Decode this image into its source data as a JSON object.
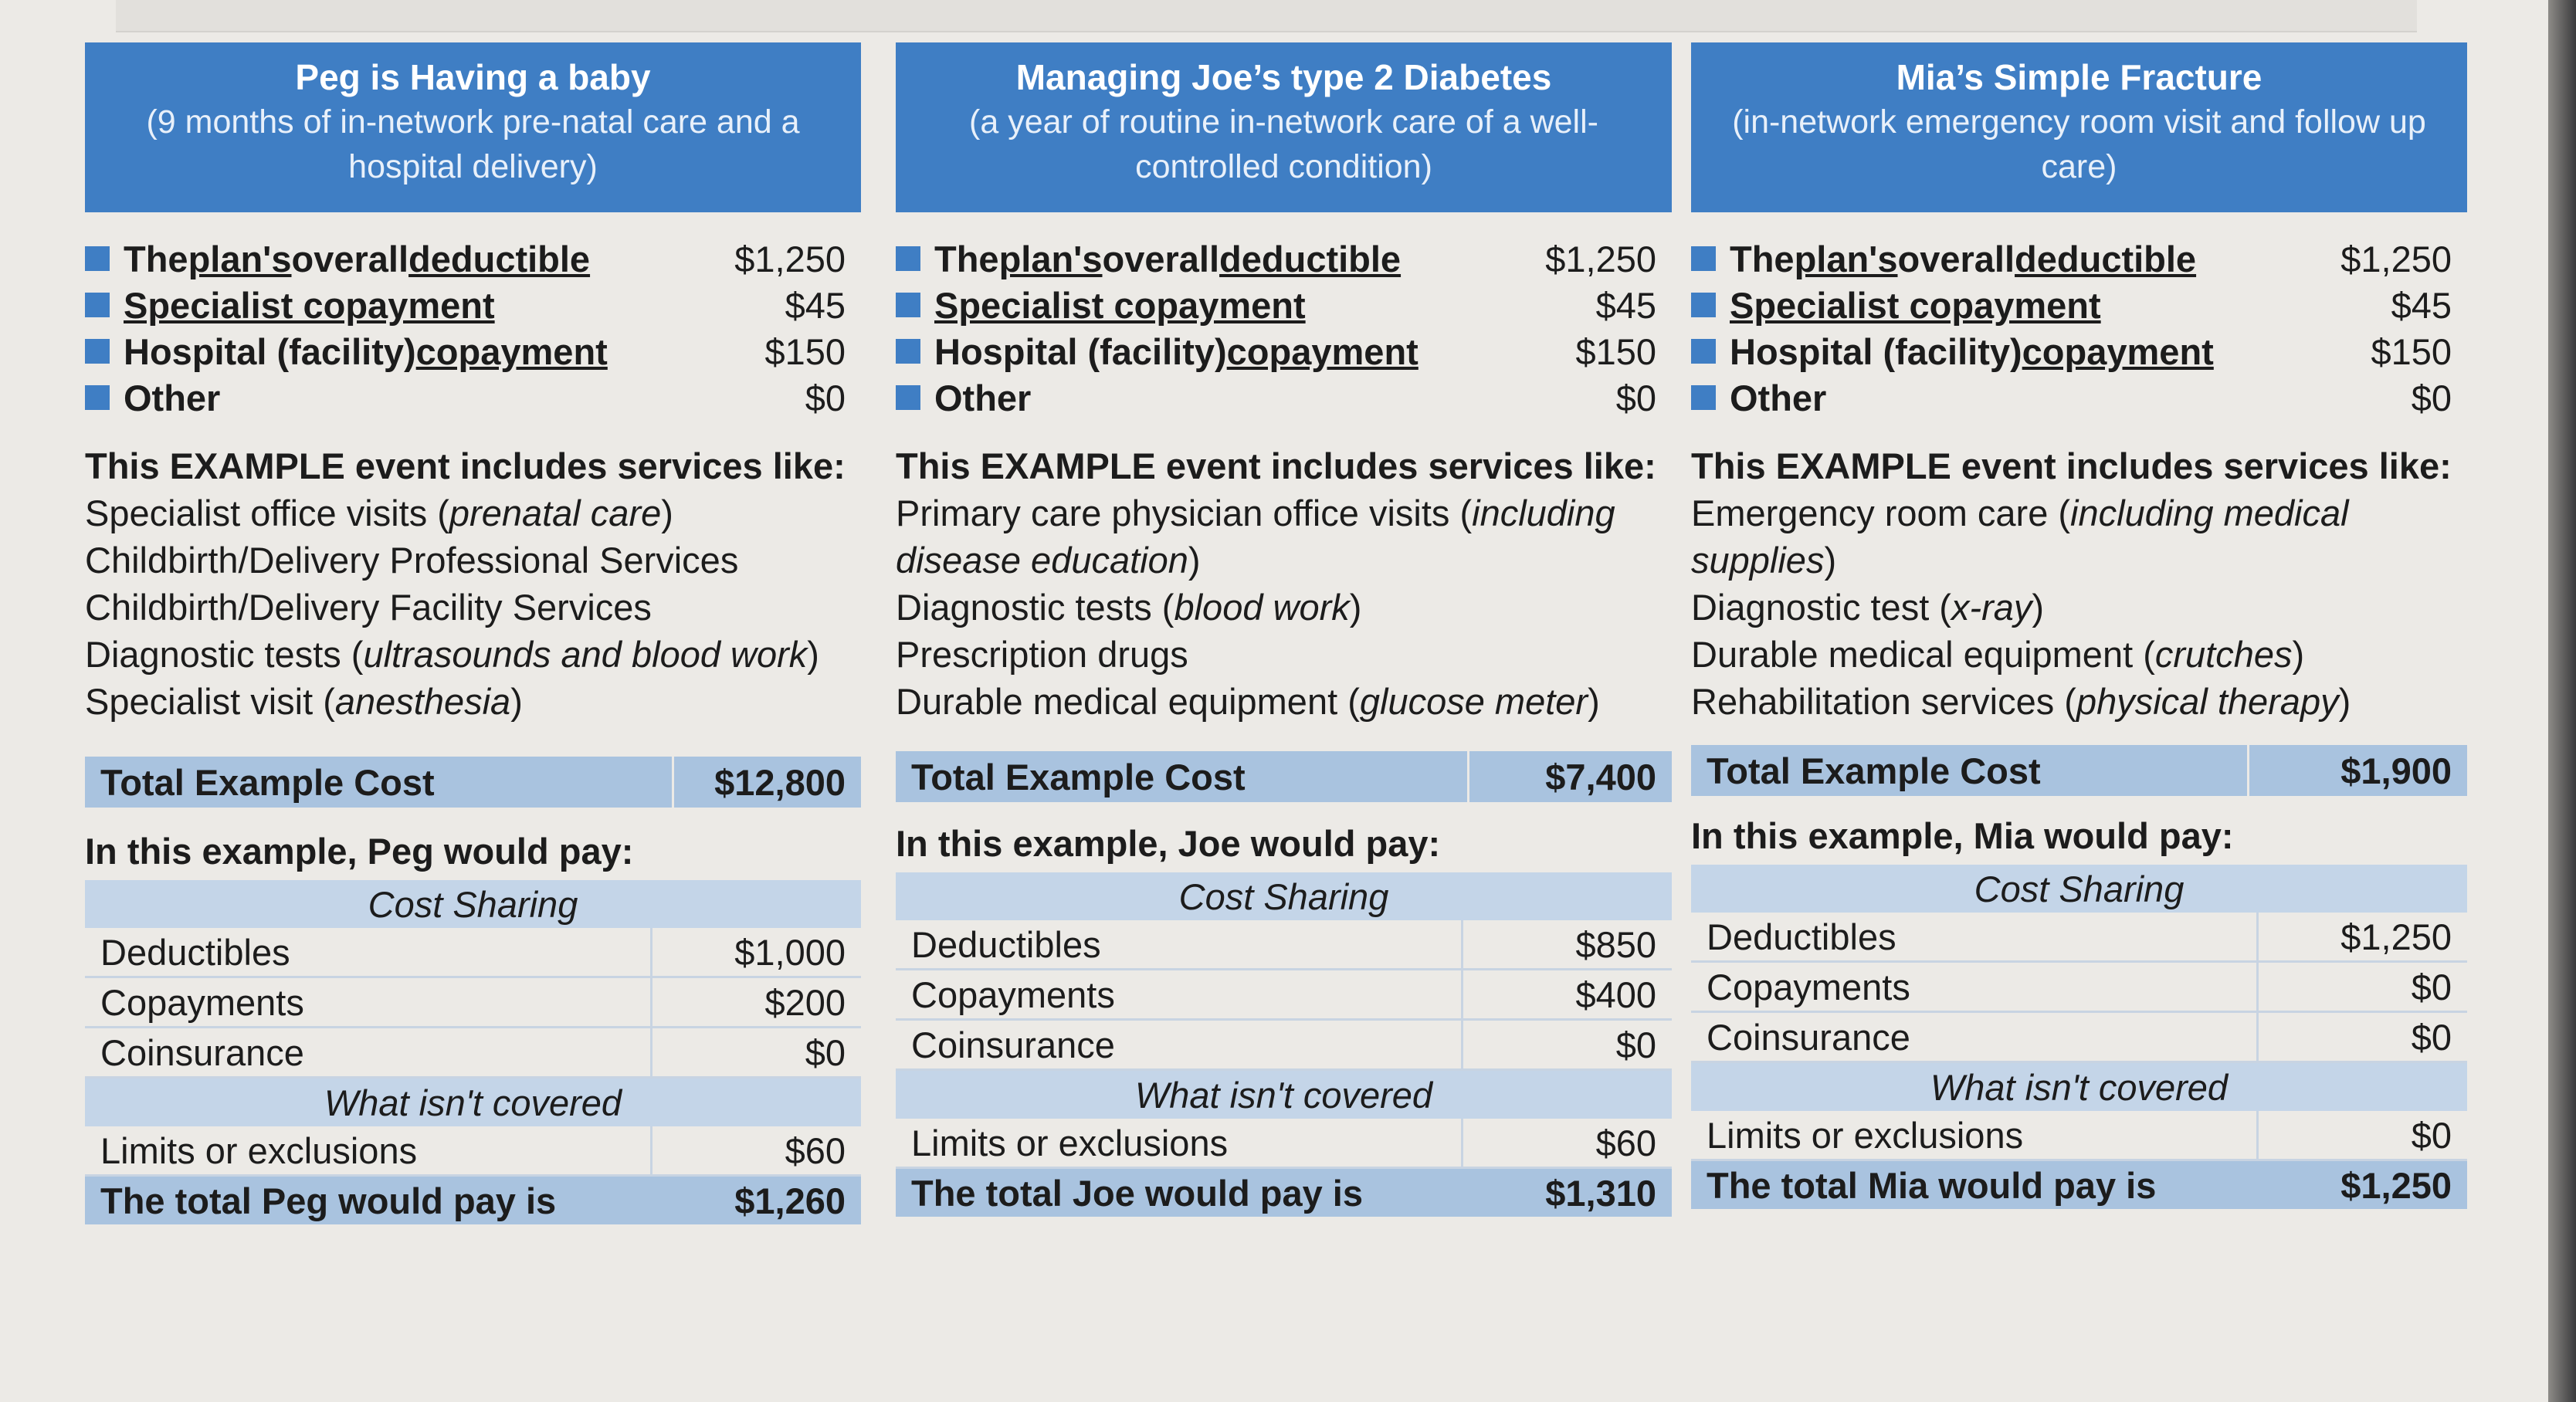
{
  "columns": [
    {
      "title": "Peg is Having a baby",
      "subtitle": "(9 months of in-network pre-natal care and a hospital delivery)",
      "plan": [
        {
          "pre": "The ",
          "u1": "plan's",
          "mid": " overall ",
          "u2": "deductible",
          "amount": "$1,250"
        },
        {
          "pre": "",
          "u1": "Specialist copayment",
          "mid": "",
          "u2": "",
          "amount": "$45"
        },
        {
          "pre": "Hospital (facility) ",
          "u1": "copayment",
          "mid": "",
          "u2": "",
          "amount": "$150"
        },
        {
          "pre": "Other",
          "u1": "",
          "mid": "",
          "u2": "",
          "amount": "$0"
        }
      ],
      "services_heading": "This EXAMPLE event includes services like:",
      "services": [
        {
          "text": "Specialist office visits (",
          "italic": "prenatal care",
          "end": ")"
        },
        {
          "text": "Childbirth/Delivery Professional Services",
          "italic": "",
          "end": ""
        },
        {
          "text": "Childbirth/Delivery Facility Services",
          "italic": "",
          "end": ""
        },
        {
          "text": "Diagnostic tests (",
          "italic": "ultrasounds and blood work",
          "end": ")"
        },
        {
          "text": "Specialist visit (",
          "italic": "anesthesia",
          "end": ")"
        }
      ],
      "total_label": "Total Example Cost",
      "total_value": "$12,800",
      "pay_heading": "In this example, Peg would pay:",
      "cost_sharing_label": "Cost Sharing",
      "deductibles_label": "Deductibles",
      "deductibles": "$1,000",
      "copayments_label": "Copayments",
      "copayments": "$200",
      "coinsurance_label": "Coinsurance",
      "coinsurance": "$0",
      "not_covered_label": "What isn't covered",
      "limits_label": "Limits or exclusions",
      "limits": "$60",
      "final_label": "The total Peg would pay is",
      "final": "$1,260"
    },
    {
      "title": "Managing Joe’s type 2 Diabetes",
      "subtitle": "(a year of routine in-network care of a well-controlled condition)",
      "plan": [
        {
          "pre": "The ",
          "u1": "plan's",
          "mid": " overall ",
          "u2": "deductible",
          "amount": "$1,250"
        },
        {
          "pre": "",
          "u1": "Specialist copayment",
          "mid": "",
          "u2": "",
          "amount": "$45"
        },
        {
          "pre": "Hospital (facility) ",
          "u1": "copayment",
          "mid": "",
          "u2": "",
          "amount": "$150"
        },
        {
          "pre": "Other",
          "u1": "",
          "mid": "",
          "u2": "",
          "amount": "$0"
        }
      ],
      "services_heading": "This EXAMPLE event includes services like:",
      "services": [
        {
          "text": "Primary care physician office visits (",
          "italic": "including disease education",
          "end": ")"
        },
        {
          "text": "Diagnostic tests (",
          "italic": "blood work",
          "end": ")"
        },
        {
          "text": "Prescription drugs",
          "italic": "",
          "end": ""
        },
        {
          "text": "Durable medical equipment (",
          "italic": "glucose meter",
          "end": ")"
        }
      ],
      "total_label": "Total Example Cost",
      "total_value": "$7,400",
      "pay_heading": "In this example, Joe would pay:",
      "cost_sharing_label": "Cost Sharing",
      "deductibles_label": "Deductibles",
      "deductibles": "$850",
      "copayments_label": "Copayments",
      "copayments": "$400",
      "coinsurance_label": "Coinsurance",
      "coinsurance": "$0",
      "not_covered_label": "What isn't covered",
      "limits_label": "Limits or exclusions",
      "limits": "$60",
      "final_label": "The total Joe would pay is",
      "final": "$1,310"
    },
    {
      "title": "Mia’s Simple Fracture",
      "subtitle": "(in-network emergency room visit and follow up care)",
      "plan": [
        {
          "pre": "The ",
          "u1": "plan's",
          "mid": " overall ",
          "u2": "deductible",
          "amount": "$1,250"
        },
        {
          "pre": "",
          "u1": "Specialist copayment",
          "mid": "",
          "u2": "",
          "amount": "$45"
        },
        {
          "pre": "Hospital (facility) ",
          "u1": "copayment",
          "mid": "",
          "u2": "",
          "amount": "$150"
        },
        {
          "pre": "Other",
          "u1": "",
          "mid": "",
          "u2": "",
          "amount": "$0"
        }
      ],
      "services_heading": "This EXAMPLE event includes services like:",
      "services": [
        {
          "text": "Emergency room care (",
          "italic": "including medical supplies",
          "end": ")"
        },
        {
          "text": "Diagnostic test (",
          "italic": "x-ray",
          "end": ")"
        },
        {
          "text": "Durable medical equipment (",
          "italic": "crutches",
          "end": ")"
        },
        {
          "text": "Rehabilitation services (",
          "italic": "physical therapy",
          "end": ")"
        }
      ],
      "total_label": "Total Example Cost",
      "total_value": "$1,900",
      "pay_heading": "In this example, Mia would pay:",
      "cost_sharing_label": "Cost Sharing",
      "deductibles_label": "Deductibles",
      "deductibles": "$1,250",
      "copayments_label": "Copayments",
      "copayments": "$0",
      "coinsurance_label": "Coinsurance",
      "coinsurance": "$0",
      "not_covered_label": "What isn't covered",
      "limits_label": "Limits or exclusions",
      "limits": "$0",
      "final_label": "The total Mia would pay is",
      "final": "$1,250"
    }
  ]
}
